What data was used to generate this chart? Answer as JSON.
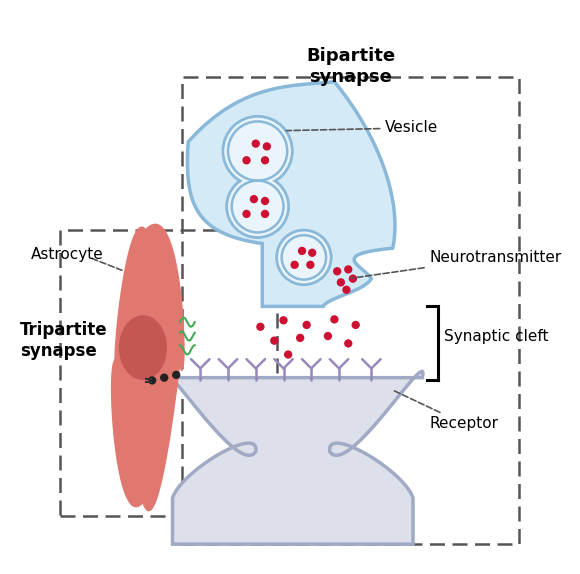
{
  "title_bipartite": "Bipartite\nsynapse",
  "title_tripartite": "Tripartite\nsynapse",
  "label_vesicle": "Vesicle",
  "label_neurotransmitter": "Neurotransmitter",
  "label_synaptic_cleft": "Synaptic cleft",
  "label_receptor": "Receptor",
  "label_astrocyte": "Astrocyte",
  "color_presynaptic": "#d4eaf7",
  "color_presynaptic_border": "#89b8d8",
  "color_postsynaptic": "#dde0ea",
  "color_postsynaptic_border": "#a0aac4",
  "color_vesicle_fill": "#eaf4fb",
  "color_vesicle_border": "#89b8d8",
  "color_neurotransmitter": "#cc1133",
  "color_astrocyte_outer": "#e07870",
  "color_astrocyte_inner": "#c85858",
  "color_nucleus": "#c05050",
  "color_receptor_stem": "#9988bb",
  "color_receptor_arms": "#9988bb",
  "color_dashed_box": "#555555",
  "bg_color": "#ffffff",
  "green_filament": "#44aa55"
}
